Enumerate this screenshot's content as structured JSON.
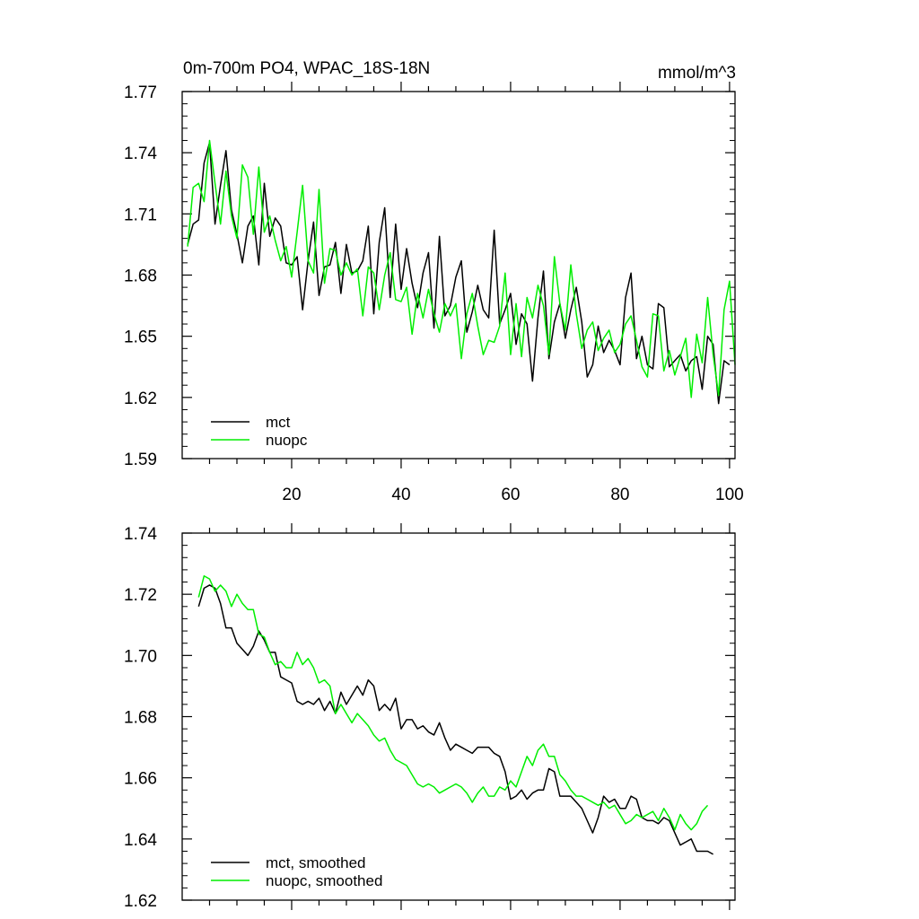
{
  "chart_data": [
    {
      "type": "line",
      "title": "0m-700m PO4, WPAC_18S-18N",
      "units": "mmol/m^3",
      "ylim": [
        1.59,
        1.77
      ],
      "yticks": [
        "1.59",
        "1.62",
        "1.65",
        "1.68",
        "1.71",
        "1.74",
        "1.77"
      ],
      "xlim": [
        0,
        101
      ],
      "xticks": [
        "20",
        "40",
        "60",
        "80",
        "100"
      ],
      "legend_position": "bottom-left",
      "series": [
        {
          "name": "mct",
          "color": "#000000",
          "x_start": 1,
          "values": [
            1.695,
            1.705,
            1.707,
            1.735,
            1.745,
            1.705,
            1.724,
            1.741,
            1.712,
            1.7,
            1.686,
            1.704,
            1.709,
            1.685,
            1.725,
            1.699,
            1.708,
            1.704,
            1.686,
            1.685,
            1.689,
            1.663,
            1.687,
            1.706,
            1.67,
            1.684,
            1.685,
            1.696,
            1.671,
            1.695,
            1.681,
            1.682,
            1.687,
            1.704,
            1.661,
            1.696,
            1.713,
            1.669,
            1.705,
            1.673,
            1.693,
            1.676,
            1.664,
            1.681,
            1.691,
            1.654,
            1.699,
            1.66,
            1.665,
            1.679,
            1.687,
            1.652,
            1.662,
            1.675,
            1.663,
            1.659,
            1.702,
            1.656,
            1.663,
            1.671,
            1.646,
            1.661,
            1.656,
            1.628,
            1.659,
            1.682,
            1.639,
            1.657,
            1.666,
            1.649,
            1.663,
            1.674,
            1.657,
            1.63,
            1.636,
            1.655,
            1.642,
            1.648,
            1.643,
            1.636,
            1.669,
            1.681,
            1.639,
            1.65,
            1.636,
            1.634,
            1.666,
            1.664,
            1.635,
            1.638,
            1.641,
            1.633,
            1.638,
            1.64,
            1.624,
            1.65,
            1.646,
            1.617,
            1.638,
            1.636
          ]
        },
        {
          "name": "nuopc",
          "color": "#00ee00",
          "x_start": 1,
          "values": [
            1.694,
            1.723,
            1.725,
            1.716,
            1.746,
            1.725,
            1.705,
            1.731,
            1.709,
            1.698,
            1.734,
            1.728,
            1.7,
            1.733,
            1.701,
            1.709,
            1.697,
            1.687,
            1.694,
            1.679,
            1.701,
            1.724,
            1.687,
            1.681,
            1.722,
            1.676,
            1.693,
            1.692,
            1.68,
            1.686,
            1.68,
            1.683,
            1.66,
            1.684,
            1.681,
            1.663,
            1.68,
            1.691,
            1.668,
            1.667,
            1.674,
            1.651,
            1.671,
            1.659,
            1.673,
            1.661,
            1.652,
            1.666,
            1.66,
            1.666,
            1.639,
            1.661,
            1.671,
            1.655,
            1.641,
            1.648,
            1.647,
            1.655,
            1.681,
            1.641,
            1.666,
            1.64,
            1.669,
            1.659,
            1.675,
            1.665,
            1.641,
            1.689,
            1.666,
            1.653,
            1.685,
            1.661,
            1.644,
            1.653,
            1.657,
            1.643,
            1.649,
            1.653,
            1.642,
            1.646,
            1.656,
            1.66,
            1.648,
            1.635,
            1.63,
            1.661,
            1.66,
            1.633,
            1.643,
            1.631,
            1.64,
            1.649,
            1.62,
            1.651,
            1.637,
            1.669,
            1.641,
            1.621,
            1.663,
            1.677,
            1.636
          ]
        }
      ]
    },
    {
      "type": "line",
      "title": "",
      "ylim": [
        1.62,
        1.74
      ],
      "yticks": [
        "1.62",
        "1.64",
        "1.66",
        "1.68",
        "1.70",
        "1.72",
        "1.74"
      ],
      "xlim": [
        0,
        101
      ],
      "legend_position": "bottom-left",
      "series": [
        {
          "name": "mct, smoothed",
          "color": "#000000",
          "x_start": 3,
          "values": [
            1.716,
            1.722,
            1.723,
            1.722,
            1.717,
            1.709,
            1.709,
            1.704,
            1.702,
            1.7,
            1.703,
            1.708,
            1.705,
            1.701,
            1.701,
            1.693,
            1.692,
            1.691,
            1.685,
            1.684,
            1.685,
            1.684,
            1.686,
            1.682,
            1.685,
            1.681,
            1.688,
            1.684,
            1.687,
            1.69,
            1.687,
            1.692,
            1.69,
            1.682,
            1.684,
            1.682,
            1.686,
            1.676,
            1.679,
            1.679,
            1.676,
            1.677,
            1.675,
            1.674,
            1.678,
            1.673,
            1.669,
            1.671,
            1.67,
            1.669,
            1.668,
            1.67,
            1.67,
            1.67,
            1.668,
            1.667,
            1.662,
            1.653,
            1.654,
            1.656,
            1.653,
            1.655,
            1.656,
            1.656,
            1.663,
            1.662,
            1.654,
            1.654,
            1.654,
            1.652,
            1.65,
            1.646,
            1.642,
            1.647,
            1.654,
            1.652,
            1.653,
            1.65,
            1.65,
            1.654,
            1.653,
            1.647,
            1.646,
            1.646,
            1.645,
            1.647,
            1.646,
            1.642,
            1.638,
            1.639,
            1.64,
            1.636,
            1.636,
            1.636,
            1.635
          ]
        },
        {
          "name": "nuopc, smoothed",
          "color": "#00ee00",
          "x_start": 3,
          "values": [
            1.719,
            1.726,
            1.725,
            1.721,
            1.723,
            1.721,
            1.716,
            1.72,
            1.717,
            1.715,
            1.715,
            1.707,
            1.706,
            1.701,
            1.697,
            1.698,
            1.696,
            1.696,
            1.701,
            1.697,
            1.699,
            1.696,
            1.691,
            1.692,
            1.69,
            1.681,
            1.684,
            1.681,
            1.678,
            1.681,
            1.679,
            1.677,
            1.674,
            1.672,
            1.673,
            1.669,
            1.666,
            1.665,
            1.664,
            1.661,
            1.658,
            1.657,
            1.658,
            1.657,
            1.655,
            1.656,
            1.657,
            1.658,
            1.657,
            1.655,
            1.652,
            1.655,
            1.657,
            1.654,
            1.654,
            1.657,
            1.656,
            1.659,
            1.657,
            1.662,
            1.667,
            1.664,
            1.669,
            1.671,
            1.667,
            1.667,
            1.661,
            1.659,
            1.656,
            1.654,
            1.654,
            1.653,
            1.652,
            1.651,
            1.652,
            1.65,
            1.651,
            1.648,
            1.645,
            1.646,
            1.648,
            1.647,
            1.648,
            1.649,
            1.646,
            1.65,
            1.647,
            1.643,
            1.648,
            1.645,
            1.643,
            1.645,
            1.649,
            1.651
          ]
        }
      ]
    }
  ]
}
